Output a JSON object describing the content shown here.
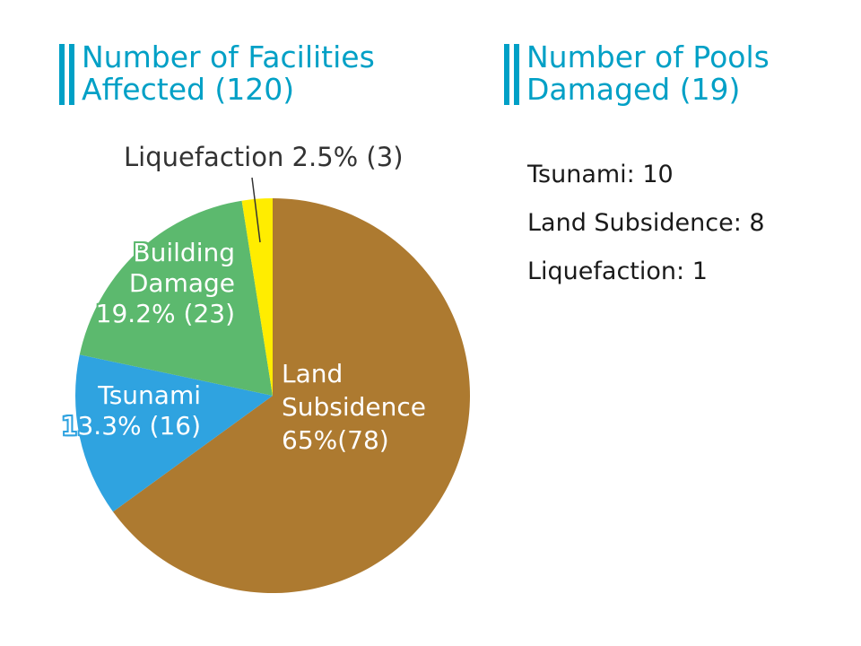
{
  "colors": {
    "accent": "#00a0c6",
    "land": "#ad7a30",
    "tsunami": "#2fa3e0",
    "building": "#5cb96e",
    "liquefaction": "#ffed00"
  },
  "left_heading": {
    "line1": "Number of Facilities",
    "line2": "Affected (120)"
  },
  "right_heading": {
    "line1": "Number of Pools",
    "line2": "Damaged (19)"
  },
  "chart_data": [
    {
      "type": "pie",
      "title": "Number of Facilities Affected (120)",
      "total": 120,
      "slices": [
        {
          "name": "Land Subsidence",
          "percent": 65,
          "count": 78,
          "label_lines": [
            "Land",
            "Subsidence",
            "65%(78)"
          ],
          "color": "#ad7a30"
        },
        {
          "name": "Tsunami",
          "percent": 13.3,
          "count": 16,
          "label_lines": [
            "Tsunami",
            "13.3% (16)"
          ],
          "color": "#2fa3e0"
        },
        {
          "name": "Building Damage",
          "percent": 19.2,
          "count": 23,
          "label_lines": [
            "Building",
            "Damage",
            "19.2% (23)"
          ],
          "color": "#5cb96e"
        },
        {
          "name": "Liquefaction",
          "percent": 2.5,
          "count": 3,
          "label_lines": [
            "Liquefaction 2.5% (3)"
          ],
          "color": "#ffed00"
        }
      ]
    },
    {
      "type": "table",
      "title": "Number of Pools Damaged (19)",
      "rows": [
        {
          "label": "Tsunami",
          "value": 10,
          "text": "Tsunami: 10"
        },
        {
          "label": "Land Subsidence",
          "value": 8,
          "text": "Land Subsidence: 8"
        },
        {
          "label": "Liquefaction",
          "value": 1,
          "text": "Liquefaction: 1"
        }
      ]
    }
  ]
}
